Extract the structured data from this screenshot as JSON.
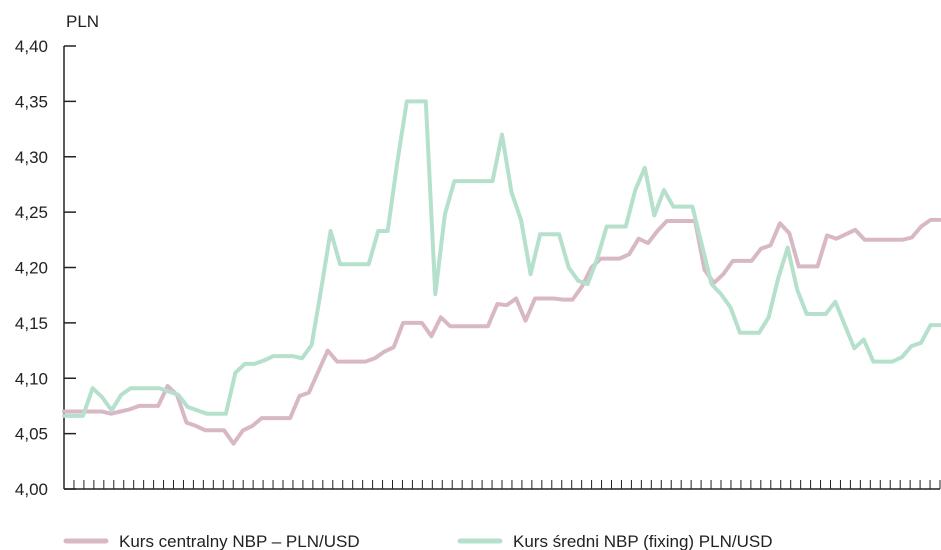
{
  "chart_data": {
    "type": "line",
    "ylabel": "PLN",
    "ylim": [
      4.0,
      4.4
    ],
    "y_ticks": [
      "4,00",
      "4,05",
      "4,10",
      "4,15",
      "4,20",
      "4,25",
      "4,30",
      "4,35",
      "4,40"
    ],
    "x_tick_count": 88,
    "grid": false,
    "legend_position": "bottom",
    "series": [
      {
        "name": "Kurs centralny NBP – PLN/USD",
        "color": "#d9b8c6",
        "values": [
          4.07,
          4.07,
          4.07,
          4.07,
          4.07,
          4.068,
          4.07,
          4.072,
          4.075,
          4.075,
          4.075,
          4.093,
          4.085,
          4.06,
          4.057,
          4.053,
          4.053,
          4.053,
          4.041,
          4.053,
          4.057,
          4.064,
          4.064,
          4.064,
          4.064,
          4.084,
          4.087,
          4.106,
          4.125,
          4.115,
          4.115,
          4.115,
          4.115,
          4.118,
          4.124,
          4.128,
          4.15,
          4.15,
          4.15,
          4.138,
          4.155,
          4.147,
          4.147,
          4.147,
          4.147,
          4.147,
          4.167,
          4.166,
          4.172,
          4.152,
          4.172,
          4.172,
          4.172,
          4.171,
          4.171,
          4.183,
          4.2,
          4.208,
          4.208,
          4.208,
          4.212,
          4.226,
          4.222,
          4.233,
          4.242,
          4.242,
          4.242,
          4.242,
          4.198,
          4.186,
          4.194,
          4.206,
          4.206,
          4.206,
          4.217,
          4.22,
          4.24,
          4.231,
          4.201,
          4.201,
          4.201,
          4.229,
          4.226,
          4.23,
          4.234,
          4.225,
          4.225,
          4.225,
          4.225,
          4.225,
          4.227,
          4.237,
          4.243,
          4.243
        ]
      },
      {
        "name": "Kurs średni NBP (fixing) PLN/USD",
        "color": "#b5e0cc",
        "values": [
          4.066,
          4.066,
          4.066,
          4.091,
          4.083,
          4.071,
          4.085,
          4.091,
          4.091,
          4.091,
          4.091,
          4.088,
          4.085,
          4.074,
          4.071,
          4.068,
          4.068,
          4.068,
          4.105,
          4.113,
          4.113,
          4.116,
          4.12,
          4.12,
          4.12,
          4.118,
          4.13,
          4.18,
          4.233,
          4.203,
          4.203,
          4.203,
          4.203,
          4.233,
          4.233,
          4.295,
          4.35,
          4.35,
          4.35,
          4.176,
          4.248,
          4.278,
          4.278,
          4.278,
          4.278,
          4.278,
          4.32,
          4.268,
          4.243,
          4.194,
          4.23,
          4.23,
          4.23,
          4.2,
          4.188,
          4.185,
          4.208,
          4.237,
          4.237,
          4.237,
          4.27,
          4.29,
          4.247,
          4.27,
          4.255,
          4.255,
          4.255,
          4.22,
          4.185,
          4.176,
          4.164,
          4.141,
          4.141,
          4.141,
          4.155,
          4.19,
          4.218,
          4.18,
          4.158,
          4.158,
          4.158,
          4.169,
          4.148,
          4.127,
          4.135,
          4.115,
          4.115,
          4.115,
          4.119,
          4.129,
          4.132,
          4.148,
          4.148
        ]
      }
    ]
  }
}
